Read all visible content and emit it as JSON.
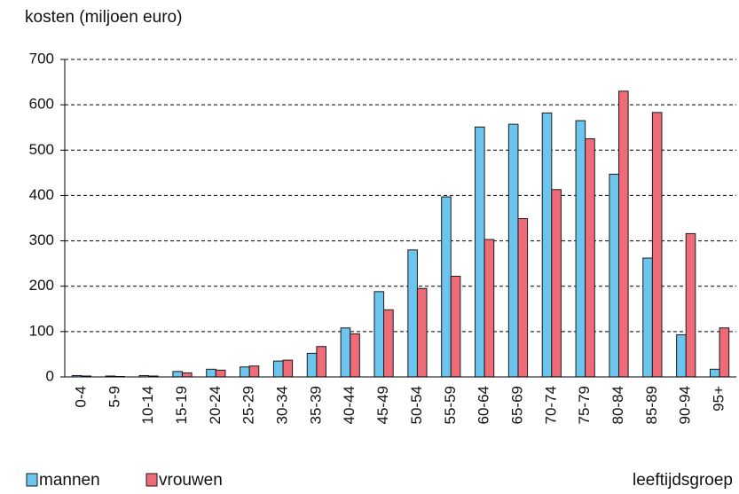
{
  "chart_data": {
    "type": "bar",
    "y_axis_title": "kosten (miljoen euro)",
    "x_axis_title": "leeftijdsgroep",
    "categories": [
      "0-4",
      "5-9",
      "10-14",
      "15-19",
      "20-24",
      "25-29",
      "30-34",
      "35-39",
      "40-44",
      "45-49",
      "50-54",
      "55-59",
      "60-64",
      "65-69",
      "70-74",
      "75-79",
      "80-84",
      "85-89",
      "90-94",
      "95+"
    ],
    "series": [
      {
        "name": "mannen",
        "color": "#6cc5ee",
        "values": [
          3,
          2,
          3,
          12,
          17,
          22,
          35,
          52,
          108,
          188,
          280,
          397,
          551,
          557,
          582,
          565,
          447,
          262,
          93,
          17
        ]
      },
      {
        "name": "vrouwen",
        "color": "#ee6b78",
        "values": [
          2,
          1,
          2,
          9,
          15,
          24,
          37,
          67,
          95,
          148,
          195,
          222,
          303,
          349,
          413,
          525,
          630,
          583,
          316,
          108
        ]
      }
    ],
    "ylim": [
      0,
      700
    ],
    "yticks": [
      0,
      100,
      200,
      300,
      400,
      500,
      600,
      700
    ],
    "grid": true
  }
}
